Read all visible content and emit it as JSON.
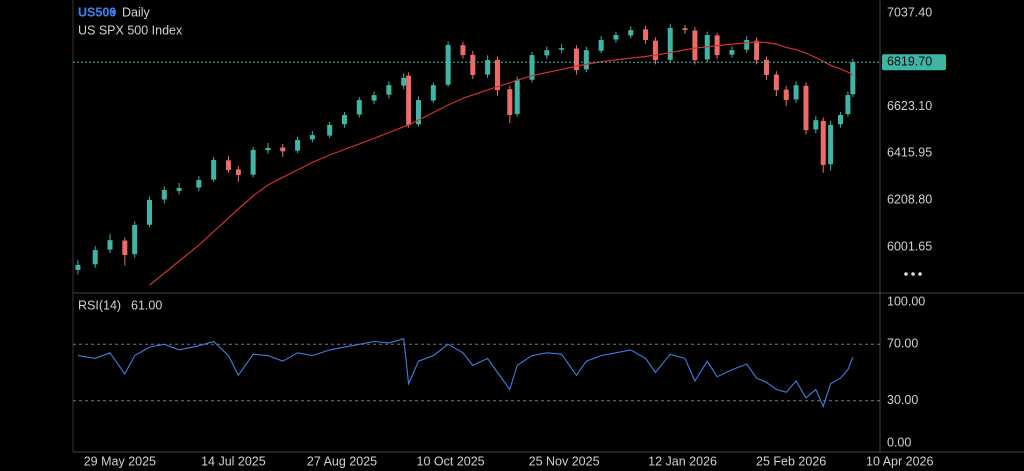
{
  "chart_data": [
    {
      "type": "candlestick",
      "title": "US500",
      "interval": "Daily",
      "subtitle": "US SPX 500 Index",
      "x": [
        "2025-05-12",
        "2025-05-19",
        "2025-05-25",
        "2025-05-31",
        "2025-06-04",
        "2025-06-10",
        "2025-06-16",
        "2025-06-22",
        "2025-06-30",
        "2025-07-06",
        "2025-07-12",
        "2025-07-16",
        "2025-07-22",
        "2025-07-28",
        "2025-08-03",
        "2025-08-09",
        "2025-08-15",
        "2025-08-22",
        "2025-08-28",
        "2025-09-03",
        "2025-09-09",
        "2025-09-15",
        "2025-09-21",
        "2025-09-23",
        "2025-09-27",
        "2025-10-03",
        "2025-10-09",
        "2025-10-15",
        "2025-10-19",
        "2025-10-25",
        "2025-10-29",
        "2025-11-03",
        "2025-11-06",
        "2025-11-12",
        "2025-11-18",
        "2025-11-24",
        "2025-11-30",
        "2025-12-04",
        "2025-12-10",
        "2025-12-16",
        "2025-12-22",
        "2025-12-28",
        "2026-01-01",
        "2026-01-07",
        "2026-01-13",
        "2026-01-17",
        "2026-01-22",
        "2026-01-26",
        "2026-02-01",
        "2026-02-07",
        "2026-02-11",
        "2026-02-15",
        "2026-02-19",
        "2026-02-23",
        "2026-02-27",
        "2026-03-03",
        "2026-03-07",
        "2026-03-10",
        "2026-03-13",
        "2026-03-17",
        "2026-03-20",
        "2026-03-22"
      ],
      "open": [
        5900,
        5925,
        5990,
        6030,
        5970,
        6100,
        6212,
        6250,
        6265,
        6300,
        6385,
        6345,
        6322,
        6430,
        6442,
        6428,
        6478,
        6495,
        6545,
        6588,
        6650,
        6676,
        6716,
        6760,
        6545,
        6650,
        6720,
        6895,
        6852,
        6765,
        6830,
        6700,
        6590,
        6742,
        6850,
        6875,
        6880,
        6788,
        6870,
        6920,
        6938,
        6965,
        6915,
        6830,
        6970,
        6960,
        6832,
        6938,
        6853,
        6875,
        6915,
        6830,
        6765,
        6698,
        6655,
        6715,
        6522,
        6560,
        6368,
        6545,
        6590,
        6678
      ],
      "high": [
        5945,
        6005,
        6060,
        6045,
        6115,
        6225,
        6270,
        6285,
        6315,
        6400,
        6405,
        6360,
        6445,
        6462,
        6458,
        6490,
        6515,
        6555,
        6600,
        6665,
        6690,
        6735,
        6770,
        6775,
        6668,
        6730,
        6912,
        6910,
        6870,
        6850,
        6845,
        6715,
        6755,
        6865,
        6890,
        6900,
        6895,
        6888,
        6935,
        6955,
        6978,
        6980,
        6930,
        6990,
        6985,
        6975,
        6955,
        6950,
        6890,
        6935,
        6930,
        6845,
        6780,
        6715,
        6735,
        6730,
        6580,
        6575,
        6560,
        6600,
        6690,
        6835
      ],
      "low": [
        5880,
        5910,
        5975,
        5920,
        5955,
        6090,
        6195,
        6235,
        6250,
        6290,
        6330,
        6290,
        6310,
        6415,
        6400,
        6418,
        6465,
        6485,
        6530,
        6575,
        6635,
        6660,
        6700,
        6530,
        6535,
        6640,
        6710,
        6835,
        6745,
        6750,
        6670,
        6550,
        6580,
        6730,
        6835,
        6860,
        6765,
        6775,
        6860,
        6905,
        6925,
        6900,
        6810,
        6820,
        6945,
        6810,
        6820,
        6835,
        6840,
        6862,
        6810,
        6740,
        6670,
        6625,
        6640,
        6500,
        6505,
        6330,
        6340,
        6530,
        6580,
        6665
      ],
      "close": [
        5922,
        5988,
        6032,
        5966,
        6099,
        6210,
        6254,
        6263,
        6298,
        6387,
        6342,
        6320,
        6431,
        6440,
        6425,
        6475,
        6497,
        6542,
        6586,
        6652,
        6674,
        6718,
        6750,
        6542,
        6652,
        6718,
        6896,
        6851,
        6763,
        6829,
        6696,
        6586,
        6740,
        6851,
        6873,
        6882,
        6785,
        6873,
        6918,
        6940,
        6962,
        6918,
        6829,
        6971,
        6962,
        6829,
        6940,
        6851,
        6873,
        6918,
        6829,
        6763,
        6696,
        6652,
        6718,
        6519,
        6563,
        6365,
        6542,
        6586,
        6674,
        6819.7
      ],
      "up_color": "#3fb5a5",
      "down_color": "#ef6b67",
      "ma": {
        "color": "#d0312d",
        "values": [
          null,
          null,
          null,
          null,
          null,
          5833,
          5886,
          5939,
          6010,
          6070,
          6130,
          6170,
          6228,
          6276,
          6310,
          6343,
          6376,
          6409,
          6433,
          6458,
          6483,
          6508,
          6534,
          6542,
          6564,
          6597,
          6630,
          6660,
          6675,
          6697,
          6711,
          6729,
          6740,
          6760,
          6774,
          6788,
          6803,
          6810,
          6822,
          6830,
          6838,
          6845,
          6851,
          6862,
          6874,
          6882,
          6888,
          6893,
          6900,
          6905,
          6909,
          6907,
          6900,
          6885,
          6875,
          6860,
          6840,
          6823,
          6806,
          6790,
          6776,
          6763
        ]
      },
      "last_price": {
        "value": 6819.7,
        "label": "6819.70"
      },
      "last_price_color": "#3fb5a5",
      "ylim": [
        5798,
        7095
      ],
      "yticks": [
        {
          "value": 7037.4,
          "label": "7037.40"
        },
        {
          "value": 6623.1,
          "label": "6623.10"
        },
        {
          "value": 6415.95,
          "label": "6415.95"
        },
        {
          "value": 6208.8,
          "label": "6208.80"
        },
        {
          "value": 6001.65,
          "label": "6001.65"
        }
      ],
      "xlim": [
        "2025-05-10",
        "2026-04-02"
      ],
      "xticks": [
        {
          "value": "2025-05-29",
          "label": "29 May 2025"
        },
        {
          "value": "2025-07-14",
          "label": "14 Jul 2025"
        },
        {
          "value": "2025-08-27",
          "label": "27 Aug 2025"
        },
        {
          "value": "2025-10-10",
          "label": "10 Oct 2025"
        },
        {
          "value": "2025-11-25",
          "label": "25 Nov 2025"
        },
        {
          "value": "2026-01-12",
          "label": "12 Jan 2026"
        },
        {
          "value": "2026-02-25",
          "label": "25 Feb 2026"
        },
        {
          "value": "2026-04-10",
          "label": "10 Apr 2026"
        }
      ]
    },
    {
      "type": "line",
      "title": "RSI(14)",
      "last_value": {
        "value": 61,
        "label": "61.00"
      },
      "color": "#3d7fe0",
      "values": [
        62,
        60,
        64,
        49,
        62,
        68,
        70,
        66,
        69,
        72,
        62,
        48,
        63,
        62,
        58,
        64,
        62,
        66,
        68,
        70,
        72,
        71,
        74,
        42,
        58,
        62,
        70,
        64,
        55,
        60,
        50,
        38,
        55,
        62,
        64,
        63,
        48,
        58,
        62,
        64,
        66,
        60,
        50,
        63,
        60,
        44,
        58,
        47,
        52,
        56,
        46,
        43,
        38,
        36,
        44,
        32,
        38,
        26,
        42,
        46,
        52,
        61
      ],
      "ylim": [
        0,
        100
      ],
      "yticks": [
        {
          "value": 100,
          "label": "100.00"
        },
        {
          "value": 70,
          "label": "70.00"
        },
        {
          "value": 30,
          "label": "30.00"
        },
        {
          "value": 0,
          "label": "0.00"
        }
      ]
    }
  ]
}
